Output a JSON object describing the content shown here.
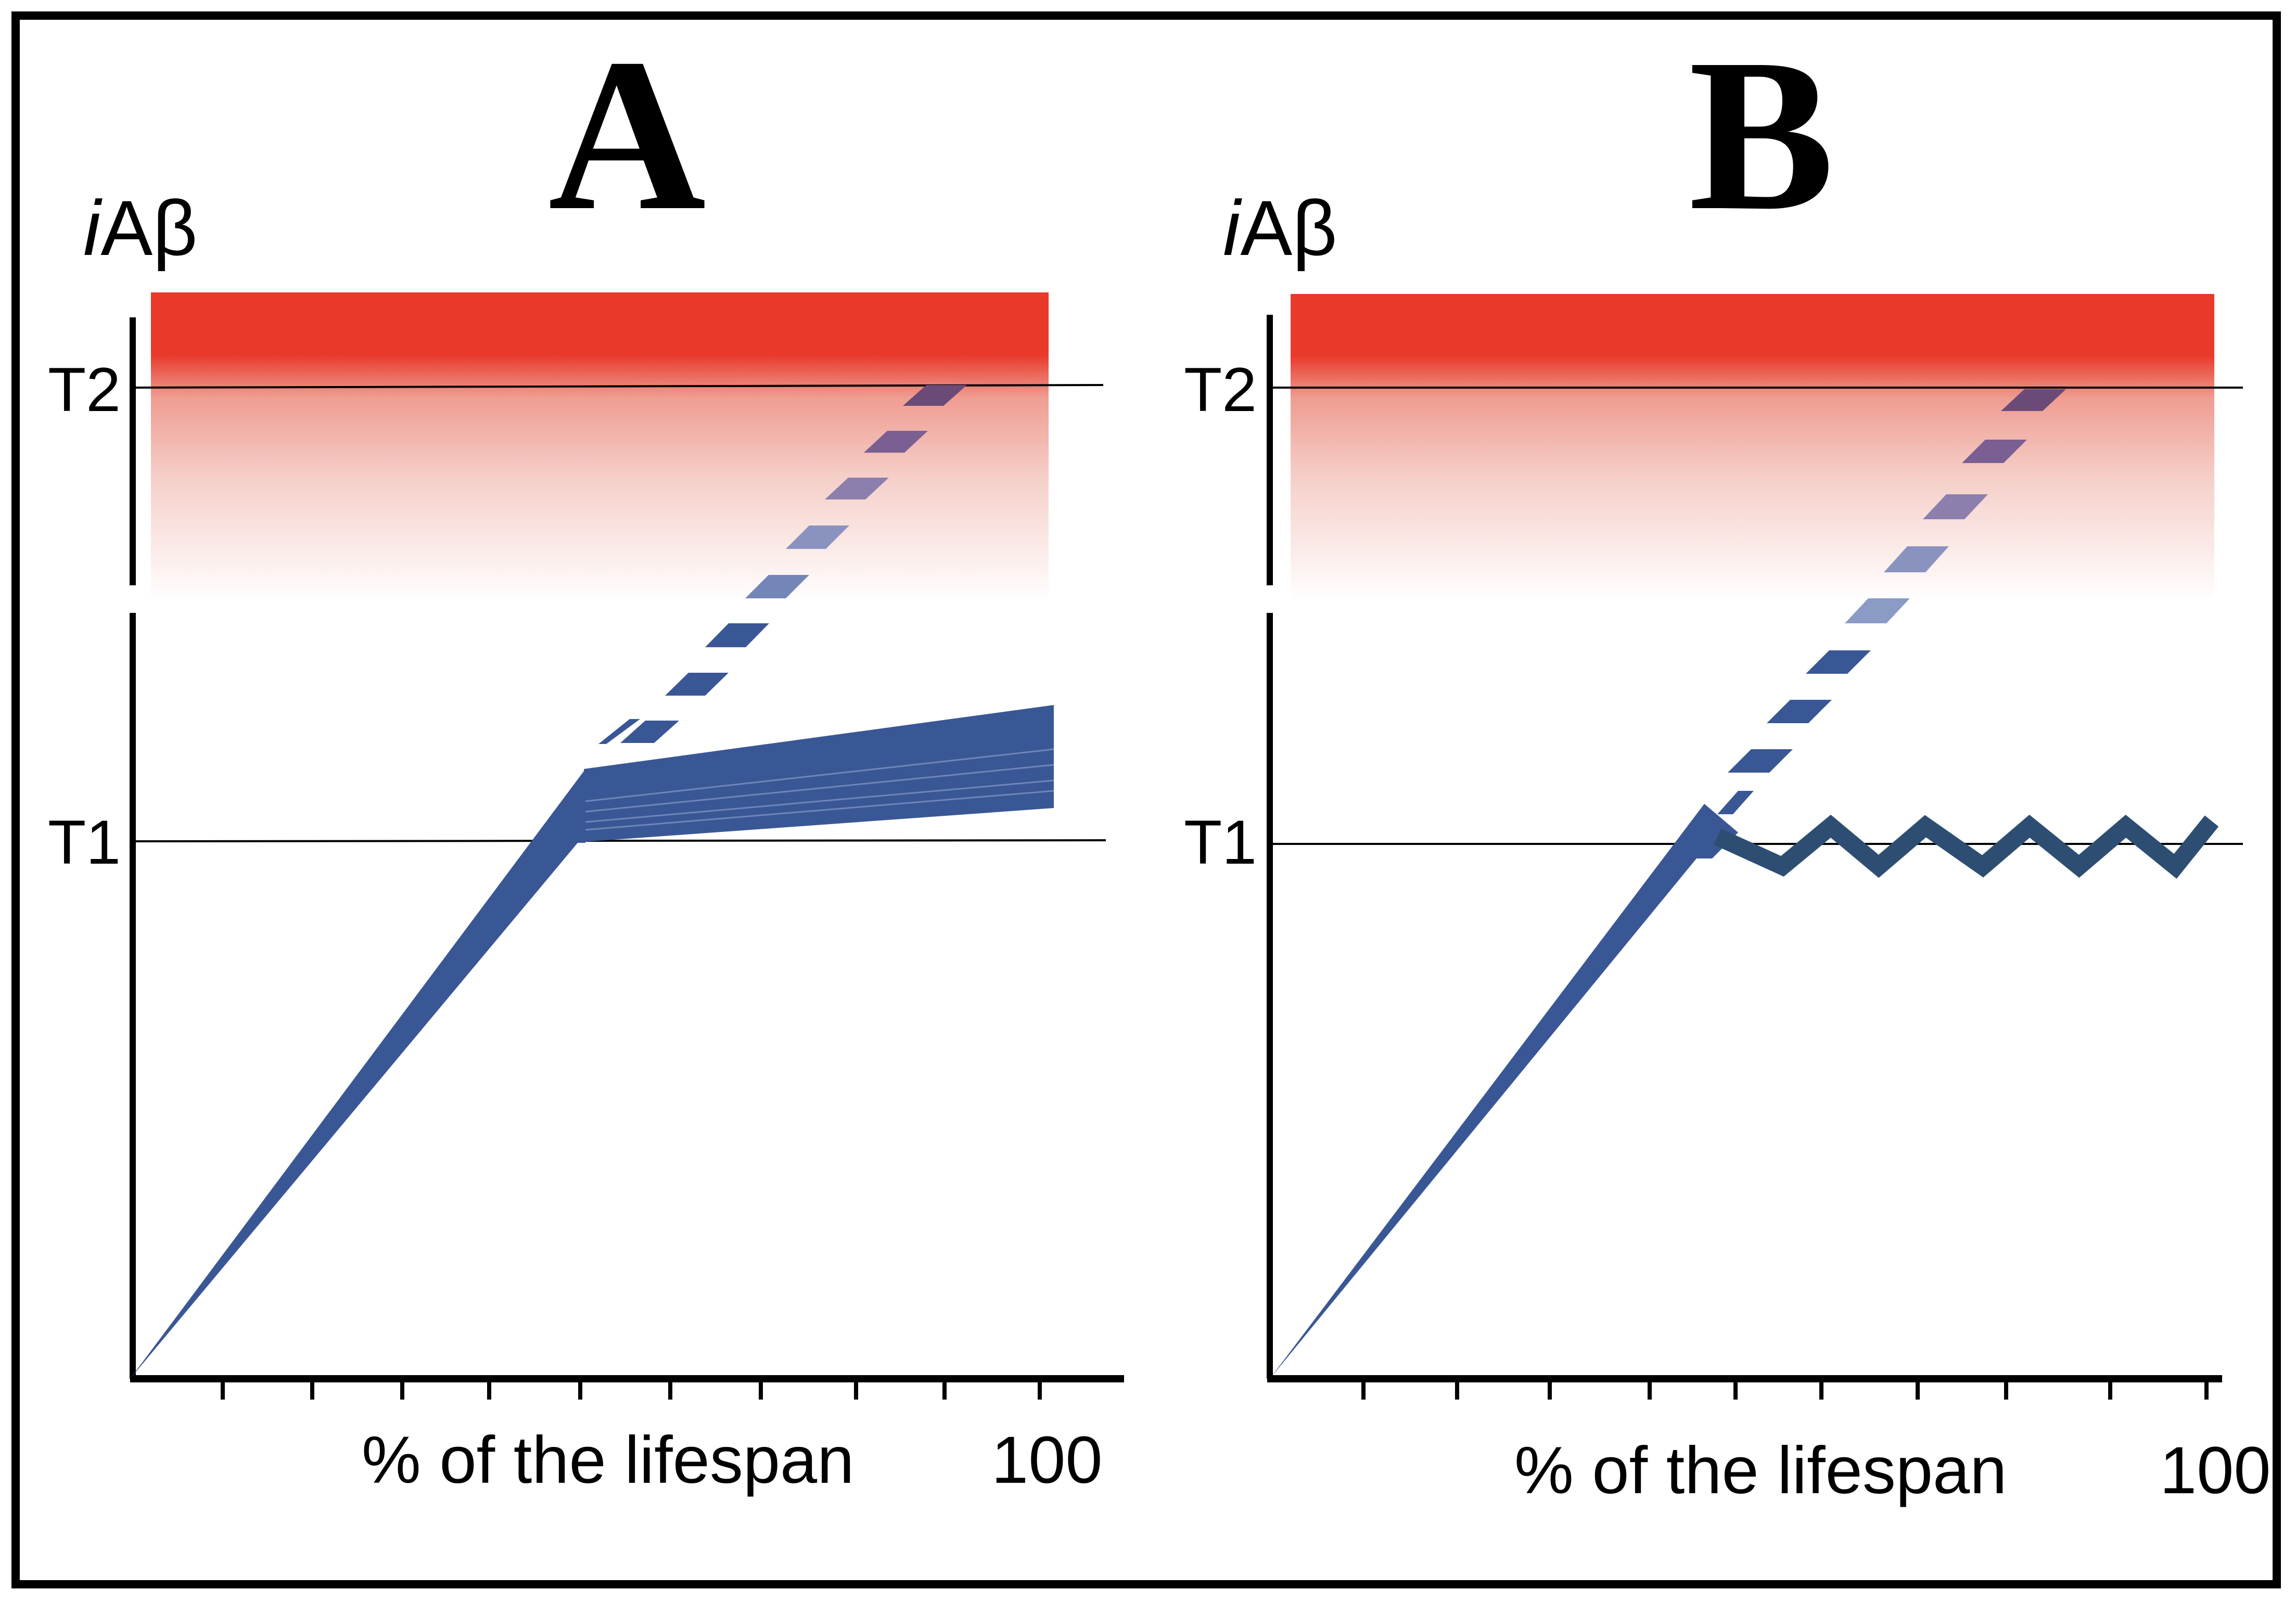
{
  "figure": {
    "panels": [
      {
        "id": "A",
        "letter": "A",
        "y_axis_label_italic": "i",
        "y_axis_label_rest": "Aβ",
        "threshold_labels": [
          "T2",
          "T1"
        ],
        "x_axis_label": "% of the lifespan",
        "x_axis_end_label": "100",
        "behavior": "plateau-rising"
      },
      {
        "id": "B",
        "letter": "B",
        "y_axis_label_italic": "i",
        "y_axis_label_rest": "Aβ",
        "threshold_labels": [
          "T2",
          "T1"
        ],
        "x_axis_label": "% of the lifespan",
        "x_axis_end_label": "100",
        "behavior": "oscillating"
      }
    ],
    "colors": {
      "frame": "#000000",
      "danger_zone": "#e8392a",
      "curve": "#3a5795",
      "curve_dark": "#2d4e72",
      "dashes_top": "#6b4a78"
    }
  }
}
